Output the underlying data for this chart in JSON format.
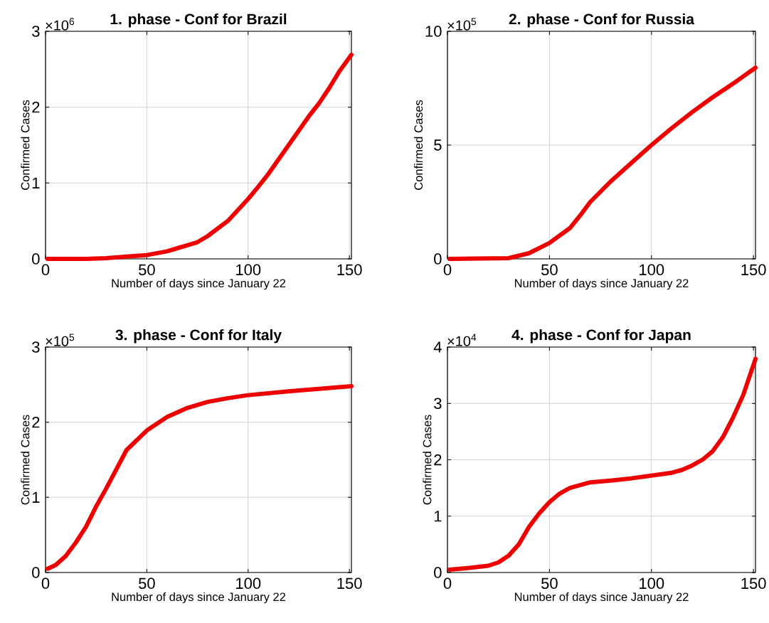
{
  "chart_data": [
    {
      "type": "line",
      "title": "1. phase - Conf for Brazil",
      "xlabel": "Number of days since January 22",
      "ylabel": "Confirmed Cases",
      "annotations": [
        "×10$^{6}$"
      ],
      "x": [
        1,
        20,
        30,
        40,
        50,
        60,
        70,
        75,
        80,
        90,
        100,
        105,
        110,
        120,
        130,
        135,
        140,
        145,
        151
      ],
      "series": [
        {
          "color": "#ee0000",
          "values": [
            0,
            0,
            0.01,
            0.03,
            0.05,
            0.1,
            0.18,
            0.22,
            0.3,
            0.5,
            0.79,
            0.95,
            1.12,
            1.5,
            1.88,
            2.05,
            2.25,
            2.47,
            2.69
          ]
        }
      ],
      "xlim": [
        0,
        151
      ],
      "ylim": [
        0,
        3
      ],
      "xticks": [
        0,
        50,
        100,
        150
      ],
      "yticks": [
        0,
        1,
        2,
        3
      ],
      "grid": true,
      "line_style": "solid"
    },
    {
      "type": "line",
      "title": "2. phase - Conf for Russia",
      "xlabel": "Number of days since January 22",
      "ylabel": "Confirmed Cases",
      "annotations": [
        "×10$^{5}$"
      ],
      "x": [
        1,
        30,
        40,
        50,
        60,
        65,
        70,
        80,
        90,
        100,
        110,
        120,
        130,
        140,
        151
      ],
      "series": [
        {
          "color": "#ee0000",
          "values": [
            0,
            0.03,
            0.25,
            0.7,
            1.35,
            1.9,
            2.5,
            3.4,
            4.2,
            5.0,
            5.75,
            6.45,
            7.1,
            7.7,
            8.4
          ]
        }
      ],
      "xlim": [
        0,
        151
      ],
      "ylim": [
        0,
        10
      ],
      "xticks": [
        0,
        50,
        100,
        150
      ],
      "yticks": [
        0,
        5,
        10
      ],
      "grid": true,
      "line_style": "solid"
    },
    {
      "type": "line",
      "title": "3. phase - Conf for Italy",
      "xlabel": "Number of days since January 22",
      "ylabel": "Confirmed Cases",
      "annotations": [
        "×10$^{5}$"
      ],
      "x": [
        1,
        5,
        10,
        15,
        20,
        25,
        30,
        40,
        50,
        60,
        70,
        80,
        90,
        100,
        120,
        151
      ],
      "series": [
        {
          "color": "#ee0000",
          "values": [
            0.05,
            0.1,
            0.22,
            0.4,
            0.61,
            0.88,
            1.12,
            1.63,
            1.89,
            2.07,
            2.19,
            2.27,
            2.32,
            2.36,
            2.41,
            2.48
          ]
        }
      ],
      "xlim": [
        0,
        151
      ],
      "ylim": [
        0,
        3
      ],
      "xticks": [
        0,
        50,
        100,
        150
      ],
      "yticks": [
        0,
        1,
        2,
        3
      ],
      "grid": true,
      "line_style": "solid"
    },
    {
      "type": "line",
      "title": "4. phase - Conf for Japan",
      "xlabel": "Number of days since January 22",
      "ylabel": "Confirmed Cases",
      "annotations": [
        "×10$^{4}$"
      ],
      "x": [
        1,
        10,
        20,
        25,
        30,
        35,
        40,
        45,
        50,
        55,
        60,
        70,
        80,
        90,
        100,
        110,
        115,
        120,
        125,
        130,
        135,
        140,
        145,
        151
      ],
      "series": [
        {
          "color": "#ee0000",
          "values": [
            0.05,
            0.08,
            0.12,
            0.18,
            0.3,
            0.5,
            0.81,
            1.05,
            1.25,
            1.4,
            1.5,
            1.6,
            1.63,
            1.67,
            1.72,
            1.77,
            1.82,
            1.9,
            2.0,
            2.15,
            2.4,
            2.75,
            3.15,
            3.79
          ]
        }
      ],
      "xlim": [
        0,
        151
      ],
      "ylim": [
        0,
        4
      ],
      "xticks": [
        0,
        50,
        100,
        150
      ],
      "yticks": [
        0,
        1,
        2,
        3,
        4
      ],
      "grid": true,
      "line_style": "solid"
    }
  ]
}
